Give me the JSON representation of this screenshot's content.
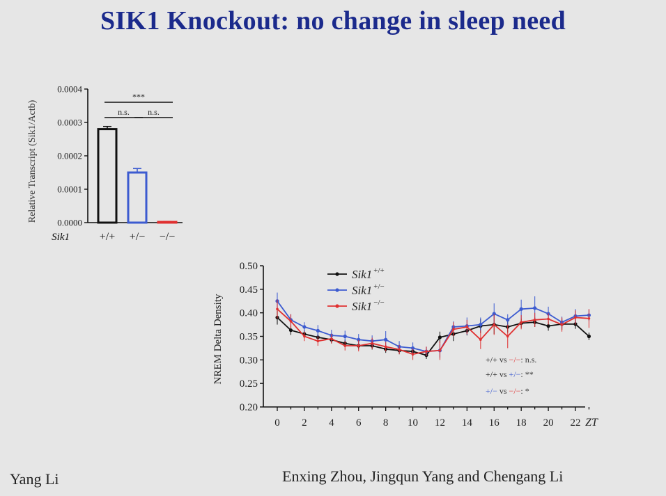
{
  "slide": {
    "title": "SIK1 Knockout: no change in sleep need",
    "author_left": "Yang Li",
    "authors_right": "Enxing Zhou, Jingqun Yang and Chengang Li"
  },
  "colors": {
    "wt": "#111111",
    "het": "#3c5bd0",
    "ko": "#e03030",
    "title": "#1b2a8c"
  },
  "chart_data": [
    {
      "type": "bar",
      "ylabel": "Relative Transcript (Sik1/Actb)",
      "xlabel": "Sik1",
      "categories": [
        "+/+",
        "+/−",
        "−/−"
      ],
      "values": [
        0.00028,
        0.00015,
        2e-06
      ],
      "errors": [
        8e-06,
        1.2e-05,
        1.5e-06
      ],
      "ylim": [
        0,
        0.0004
      ],
      "yticks": [
        "0.0000",
        "0.0001",
        "0.0002",
        "0.0003",
        "0.0004"
      ],
      "significance": [
        {
          "from": 0,
          "to": 2,
          "label": "***"
        },
        {
          "from": 0,
          "to": 1,
          "label": "n.s."
        },
        {
          "from": 1,
          "to": 2,
          "label": "n.s."
        }
      ]
    },
    {
      "type": "line",
      "ylabel": "NREM Delta Density",
      "xlabel": "ZT",
      "ylim": [
        0.2,
        0.5
      ],
      "yticks": [
        "0.20",
        "0.25",
        "0.30",
        "0.35",
        "0.40",
        "0.45",
        "0.50"
      ],
      "xticks": [
        "0",
        "2",
        "4",
        "6",
        "8",
        "10",
        "12",
        "14",
        "16",
        "18",
        "20",
        "22"
      ],
      "x": [
        0,
        1,
        2,
        3,
        4,
        5,
        6,
        7,
        8,
        9,
        10,
        11,
        12,
        13,
        14,
        15,
        16,
        17,
        18,
        19,
        20,
        21,
        22,
        23
      ],
      "legend_position": "top-left",
      "series": [
        {
          "name": "Sik1 +/+",
          "key": "wt",
          "values": [
            0.39,
            0.363,
            0.355,
            0.348,
            0.343,
            0.335,
            0.33,
            0.33,
            0.323,
            0.32,
            0.318,
            0.31,
            0.348,
            0.355,
            0.362,
            0.372,
            0.375,
            0.37,
            0.378,
            0.38,
            0.372,
            0.376,
            0.376,
            0.35
          ],
          "err": [
            0.015,
            0.01,
            0.008,
            0.008,
            0.008,
            0.008,
            0.008,
            0.008,
            0.008,
            0.008,
            0.01,
            0.008,
            0.012,
            0.015,
            0.01,
            0.015,
            0.02,
            0.012,
            0.01,
            0.01,
            0.01,
            0.012,
            0.01,
            0.008
          ]
        },
        {
          "name": "Sik1 +/−",
          "key": "het",
          "values": [
            0.425,
            0.385,
            0.37,
            0.362,
            0.352,
            0.35,
            0.343,
            0.34,
            0.343,
            0.328,
            0.325,
            0.318,
            0.32,
            0.37,
            0.372,
            0.375,
            0.398,
            0.385,
            0.408,
            0.41,
            0.398,
            0.38,
            0.393,
            0.395
          ],
          "err": [
            0.018,
            0.012,
            0.01,
            0.012,
            0.012,
            0.012,
            0.012,
            0.012,
            0.018,
            0.012,
            0.012,
            0.01,
            0.015,
            0.012,
            0.018,
            0.015,
            0.022,
            0.012,
            0.02,
            0.025,
            0.015,
            0.012,
            0.015,
            0.012
          ]
        },
        {
          "name": "Sik1 −/−",
          "key": "ko",
          "values": [
            0.408,
            0.382,
            0.35,
            0.34,
            0.345,
            0.33,
            0.33,
            0.335,
            0.328,
            0.322,
            0.312,
            0.318,
            0.32,
            0.365,
            0.37,
            0.343,
            0.375,
            0.35,
            0.38,
            0.385,
            0.387,
            0.375,
            0.39,
            0.388
          ],
          "err": [
            0.02,
            0.015,
            0.01,
            0.01,
            0.01,
            0.01,
            0.012,
            0.012,
            0.01,
            0.01,
            0.012,
            0.01,
            0.02,
            0.015,
            0.015,
            0.02,
            0.022,
            0.025,
            0.015,
            0.015,
            0.012,
            0.015,
            0.015,
            0.02
          ]
        }
      ],
      "stats": [
        {
          "a": "+/+",
          "vs": "vs",
          "b": "−/−",
          "sig": ": n.s.",
          "a_key": "wt",
          "b_key": "ko"
        },
        {
          "a": "+/+",
          "vs": "vs",
          "b": "+/−",
          "sig": ": **",
          "a_key": "wt",
          "b_key": "het"
        },
        {
          "a": "+/−",
          "vs": "vs",
          "b": "−/−",
          "sig": ": *",
          "a_key": "het",
          "b_key": "ko"
        }
      ]
    }
  ]
}
